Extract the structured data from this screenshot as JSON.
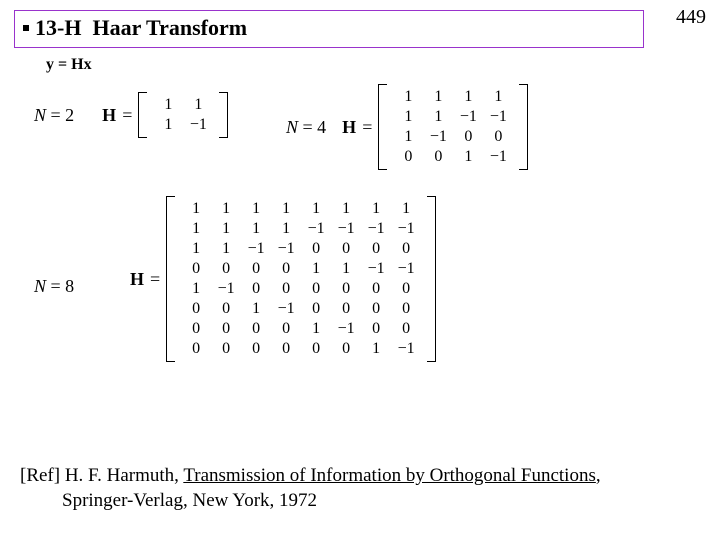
{
  "page_number": "449",
  "title": {
    "prefix": "13-H",
    "text": "Haar Transform",
    "border_color": "#9933cc"
  },
  "equation": "y = Hx",
  "labels": {
    "N2": "N = 2",
    "N4": "N = 4",
    "N8": "N = 8",
    "H_symbol": "H",
    "equals": "="
  },
  "matrices": {
    "N2": {
      "cols": 2,
      "cells": [
        "1",
        "1",
        "1",
        "−1"
      ]
    },
    "N4": {
      "cols": 4,
      "cells": [
        "1",
        "1",
        "1",
        "1",
        "1",
        "1",
        "−1",
        "−1",
        "1",
        "−1",
        "0",
        "0",
        "0",
        "0",
        "1",
        "−1"
      ]
    },
    "N8": {
      "cols": 8,
      "cells": [
        "1",
        "1",
        "1",
        "1",
        "1",
        "1",
        "1",
        "1",
        "1",
        "1",
        "1",
        "1",
        "−1",
        "−1",
        "−1",
        "−1",
        "1",
        "1",
        "−1",
        "−1",
        "0",
        "0",
        "0",
        "0",
        "0",
        "0",
        "0",
        "0",
        "1",
        "1",
        "−1",
        "−1",
        "1",
        "−1",
        "0",
        "0",
        "0",
        "0",
        "0",
        "0",
        "0",
        "0",
        "1",
        "−1",
        "0",
        "0",
        "0",
        "0",
        "0",
        "0",
        "0",
        "0",
        "1",
        "−1",
        "0",
        "0",
        "0",
        "0",
        "0",
        "0",
        "0",
        "0",
        "1",
        "−1"
      ]
    }
  },
  "reference": {
    "lead": "[Ref] H. F. Harmuth, ",
    "title_underlined": "Transmission of Information by Orthogonal Functions",
    "after_title": ",",
    "line2": "Springer-Verlag, New York, 1972"
  }
}
